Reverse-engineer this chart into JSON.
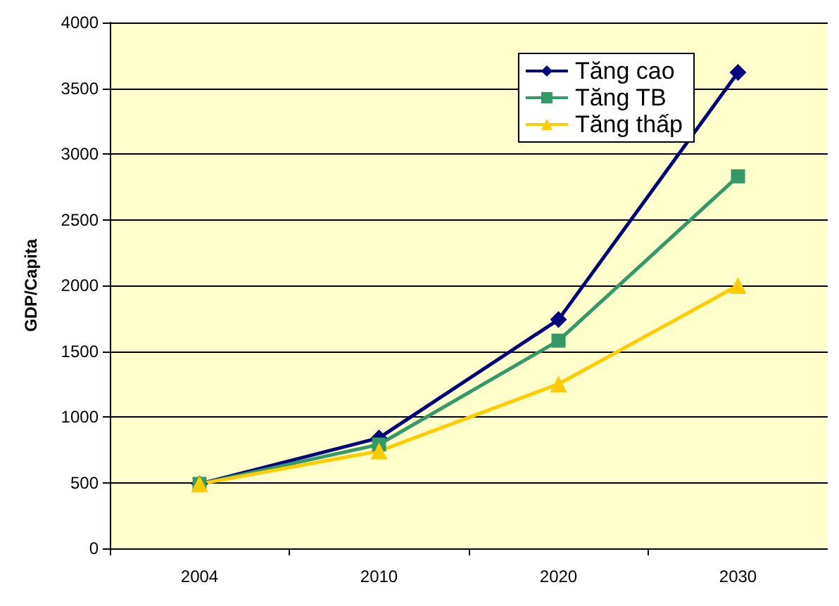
{
  "chart_data": {
    "type": "line",
    "ylabel": "GDP/Capita",
    "categories": [
      "2004",
      "2010",
      "2020",
      "2030"
    ],
    "series": [
      {
        "name": "Tăng cao",
        "color": "#000080",
        "marker": "diamond",
        "values": [
          490,
          840,
          1740,
          3620
        ]
      },
      {
        "name": "Tăng TB",
        "color": "#339966",
        "marker": "square",
        "values": [
          490,
          790,
          1580,
          2830
        ]
      },
      {
        "name": "Tăng thấp",
        "color": "#ffcc00",
        "marker": "triangle",
        "values": [
          490,
          740,
          1250,
          2000
        ]
      }
    ],
    "ylim": [
      0,
      4000
    ],
    "yticks": [
      0,
      500,
      1000,
      1500,
      2000,
      2500,
      3000,
      3500,
      4000
    ],
    "grid": "y",
    "legend": "top right",
    "line_style": "solid"
  }
}
